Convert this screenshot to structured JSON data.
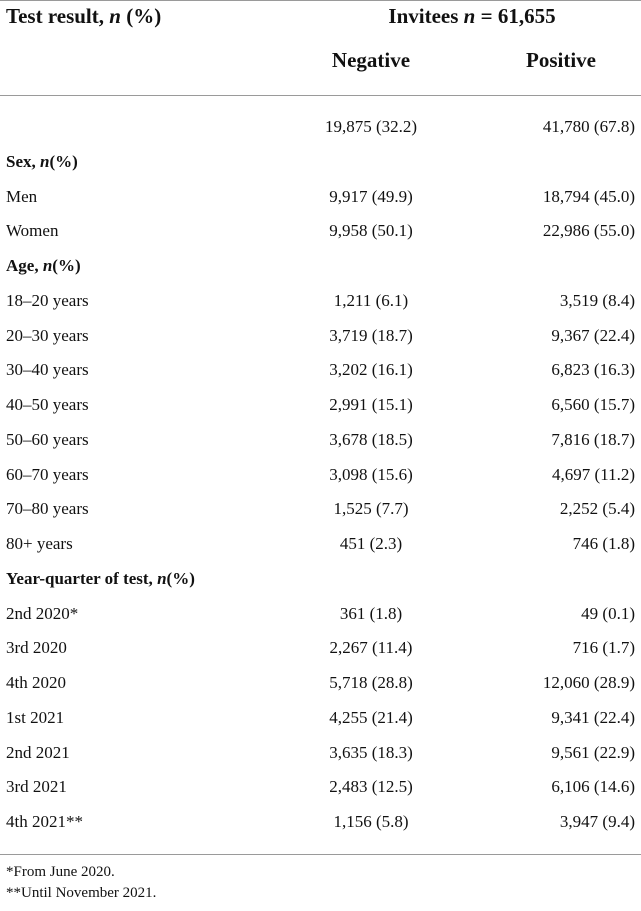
{
  "header": {
    "label_text": "Test result, ",
    "label_n": "n",
    "label_pct": " (%)",
    "group_text": "Invitees ",
    "group_n": "n",
    "group_value": " = 61,655",
    "col_negative": "Negative",
    "col_positive": "Positive"
  },
  "rows": [
    {
      "type": "data",
      "label": "",
      "negative": "19,875 (32.2)",
      "positive": "41,780 (67.8)"
    },
    {
      "type": "section",
      "label": "Sex, ",
      "n": "n",
      "suffix": "(%)"
    },
    {
      "type": "data",
      "label": "Men",
      "negative": "9,917 (49.9)",
      "positive": "18,794 (45.0)"
    },
    {
      "type": "data",
      "label": "Women",
      "negative": "9,958 (50.1)",
      "positive": "22,986 (55.0)"
    },
    {
      "type": "section",
      "label": "Age, ",
      "n": "n",
      "suffix": "(%)"
    },
    {
      "type": "data",
      "label": "18–20 years",
      "negative": "1,211 (6.1)",
      "positive": "3,519 (8.4)"
    },
    {
      "type": "data",
      "label": "20–30 years",
      "negative": "3,719 (18.7)",
      "positive": "9,367 (22.4)"
    },
    {
      "type": "data",
      "label": "30–40 years",
      "negative": "3,202 (16.1)",
      "positive": "6,823 (16.3)"
    },
    {
      "type": "data",
      "label": "40–50 years",
      "negative": "2,991 (15.1)",
      "positive": "6,560 (15.7)"
    },
    {
      "type": "data",
      "label": "50–60 years",
      "negative": "3,678 (18.5)",
      "positive": "7,816 (18.7)"
    },
    {
      "type": "data",
      "label": "60–70 years",
      "negative": "3,098 (15.6)",
      "positive": "4,697 (11.2)"
    },
    {
      "type": "data",
      "label": "70–80 years",
      "negative": "1,525 (7.7)",
      "positive": "2,252 (5.4)"
    },
    {
      "type": "data",
      "label": "80+ years",
      "negative": "451 (2.3)",
      "positive": "746 (1.8)"
    },
    {
      "type": "section",
      "label": "Year-quarter of test, ",
      "n": "n",
      "suffix": "(%)"
    },
    {
      "type": "data",
      "label": "2nd 2020*",
      "negative": "361 (1.8)",
      "positive": "49 (0.1)"
    },
    {
      "type": "data",
      "label": "3rd 2020",
      "negative": "2,267 (11.4)",
      "positive": "716 (1.7)"
    },
    {
      "type": "data",
      "label": "4th 2020",
      "negative": "5,718 (28.8)",
      "positive": "12,060 (28.9)"
    },
    {
      "type": "data",
      "label": "1st 2021",
      "negative": "4,255 (21.4)",
      "positive": "9,341 (22.4)"
    },
    {
      "type": "data",
      "label": "2nd 2021",
      "negative": "3,635 (18.3)",
      "positive": "9,561 (22.9)"
    },
    {
      "type": "data",
      "label": "3rd 2021",
      "negative": "2,483 (12.5)",
      "positive": "6,106 (14.6)"
    },
    {
      "type": "data",
      "label": "4th 2021**",
      "negative": "1,156 (5.8)",
      "positive": "3,947 (9.4)"
    }
  ],
  "footnotes": [
    "*From June 2020.",
    "**Until November 2021."
  ]
}
